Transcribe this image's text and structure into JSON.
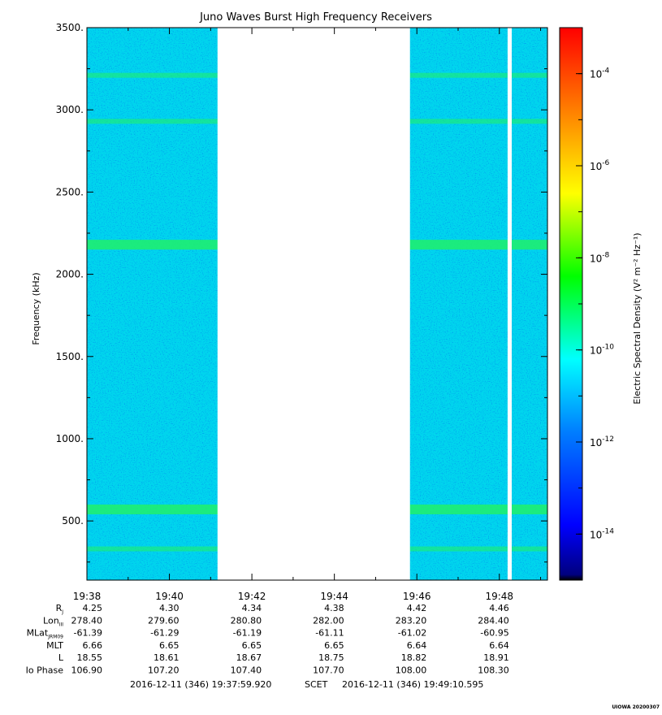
{
  "chart_data": {
    "type": "heatmap",
    "title": "Juno Waves Burst High Frequency Receivers",
    "ylabel": "Frequency (kHz)",
    "ylim": [
      140,
      3500
    ],
    "yticks": [
      "500.",
      "1000.",
      "1500.",
      "2000.",
      "2500.",
      "3000.",
      "3500."
    ],
    "xticks": [
      "19:38",
      "19:40",
      "19:42",
      "19:44",
      "19:46",
      "19:48"
    ],
    "x_range": [
      "19:38",
      "19:49:10"
    ],
    "data_gaps": [
      [
        "19:41:10",
        "19:45:50"
      ],
      [
        "19:48:12",
        "19:48:18"
      ]
    ],
    "bands_kHz": [
      330,
      570,
      2180,
      2930,
      3210
    ],
    "colorbar": {
      "label": "Electric Spectral Density",
      "units": "(V² m⁻² Hz⁻¹)",
      "scale": "log",
      "range": [
        1e-15,
        0.001
      ],
      "tick_exponents": [
        "-4",
        "-6",
        "-8",
        "-10",
        "-12",
        "-14"
      ]
    },
    "ephemeris": [
      {
        "label": "R",
        "sub": "J",
        "values": [
          "4.25",
          "4.30",
          "4.34",
          "4.38",
          "4.42",
          "4.46"
        ]
      },
      {
        "label": "Lon",
        "sub": "III",
        "values": [
          "278.40",
          "279.60",
          "280.80",
          "282.00",
          "283.20",
          "284.40"
        ]
      },
      {
        "label": "MLat",
        "sub": "JRM09",
        "values": [
          "-61.39",
          "-61.29",
          "-61.19",
          "-61.11",
          "-61.02",
          "-60.95"
        ]
      },
      {
        "label": "MLT",
        "sub": "",
        "values": [
          "6.66",
          "6.65",
          "6.65",
          "6.65",
          "6.64",
          "6.64"
        ]
      },
      {
        "label": "L",
        "sub": "",
        "values": [
          "18.55",
          "18.61",
          "18.67",
          "18.75",
          "18.82",
          "18.91"
        ]
      },
      {
        "label": "Io Phase",
        "sub": "",
        "values": [
          "106.90",
          "107.20",
          "107.40",
          "107.70",
          "108.00",
          "108.30"
        ]
      }
    ],
    "time_span": {
      "start": "2016-12-11 (346) 19:37:59.920",
      "separator": "SCET",
      "end": "2016-12-11 (346) 19:49:10.595"
    },
    "credit": "UIOWA 20200307",
    "palette": [
      "#00007f",
      "#0000ff",
      "#007fff",
      "#00ffff",
      "#00ff00",
      "#ffff00",
      "#ff7f00",
      "#ff0000"
    ]
  }
}
